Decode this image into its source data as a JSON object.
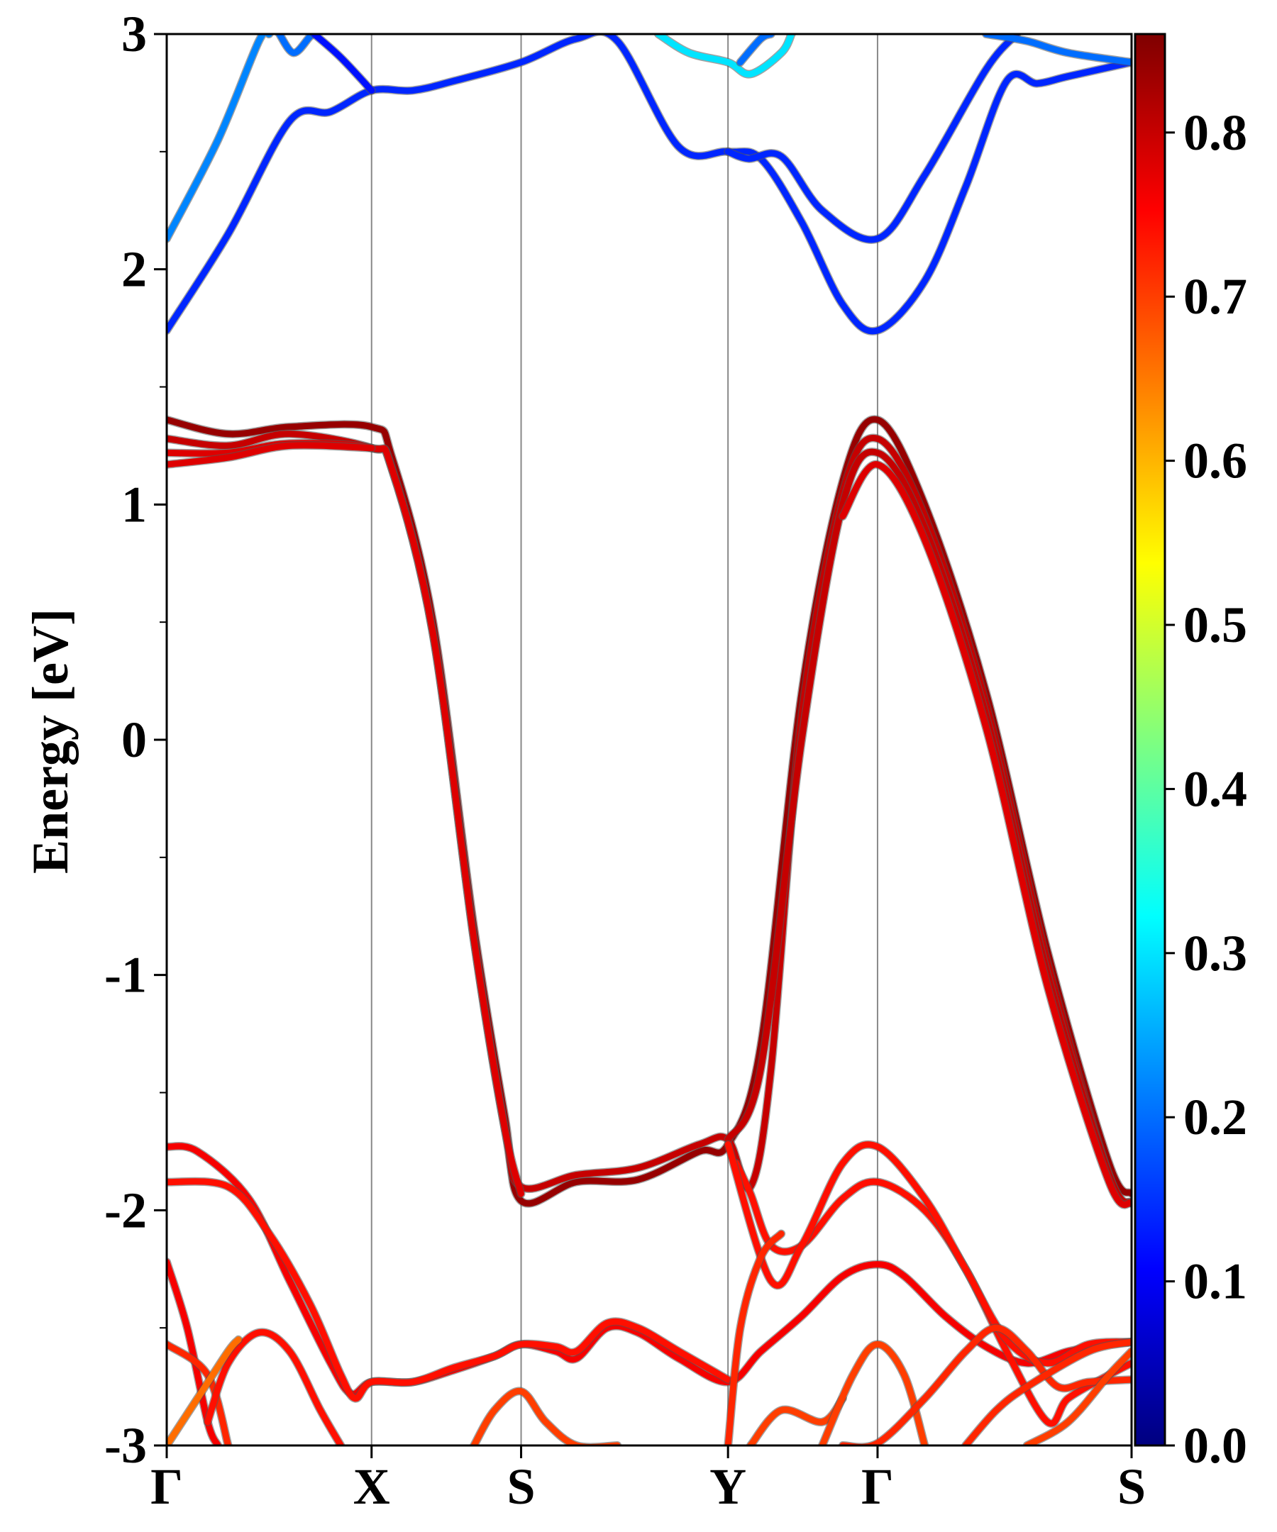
{
  "chart_data": {
    "type": "line",
    "ylabel": "Energy [eV]",
    "xlabel": "",
    "ylim": [
      -3,
      3
    ],
    "y_ticks": [
      "-3",
      "-2",
      "-1",
      "0",
      "1",
      "2",
      "3"
    ],
    "y_minor_step": 0.5,
    "x_ticks": [
      {
        "label": "Γ",
        "x": 0.0
      },
      {
        "label": "X",
        "x": 1.0
      },
      {
        "label": "S",
        "x": 1.73
      },
      {
        "label": "Y",
        "x": 2.74
      },
      {
        "label": "Γ",
        "x": 3.47
      },
      {
        "label": "S",
        "x": 4.71
      }
    ],
    "xlim": [
      0,
      4.71
    ],
    "high_symmetry_lines": true,
    "colorbar": {
      "range": [
        0.0,
        0.86
      ],
      "ticks": [
        "0.0",
        "0.1",
        "0.2",
        "0.3",
        "0.4",
        "0.5",
        "0.6",
        "0.7",
        "0.8"
      ],
      "colormap": "jet",
      "stops": [
        "#00007f",
        "#0000ff",
        "#007fff",
        "#00ffff",
        "#7fff7f",
        "#ffff00",
        "#ff7f00",
        "#ff0000",
        "#7f0000"
      ]
    },
    "series": [
      {
        "w": 0.22,
        "points": [
          [
            0,
            2.13
          ],
          [
            0.25,
            2.55
          ],
          [
            0.45,
            2.97
          ],
          [
            0.5,
            3.0
          ]
        ]
      },
      {
        "w": 0.14,
        "points": [
          [
            0,
            1.74
          ],
          [
            0.3,
            2.15
          ],
          [
            0.6,
            2.63
          ],
          [
            0.8,
            2.67
          ],
          [
            1.0,
            2.76
          ],
          [
            1.2,
            2.76
          ],
          [
            1.4,
            2.8
          ],
          [
            1.73,
            2.88
          ],
          [
            2.0,
            2.98
          ],
          [
            2.2,
            2.97
          ],
          [
            2.5,
            2.52
          ],
          [
            2.74,
            2.5
          ],
          [
            2.9,
            2.47
          ],
          [
            3.1,
            2.2
          ],
          [
            3.3,
            1.85
          ],
          [
            3.47,
            1.74
          ],
          [
            3.7,
            1.95
          ],
          [
            3.9,
            2.35
          ],
          [
            4.1,
            2.8
          ],
          [
            4.25,
            2.79
          ],
          [
            4.4,
            2.82
          ],
          [
            4.71,
            2.88
          ]
        ]
      },
      {
        "w": 0.2,
        "points": [
          [
            0.55,
            3.0
          ],
          [
            0.62,
            2.92
          ],
          [
            0.7,
            2.99
          ],
          [
            0.72,
            3.0
          ]
        ]
      },
      {
        "w": 0.12,
        "points": [
          [
            0.72,
            3.0
          ],
          [
            0.85,
            2.9
          ],
          [
            1.0,
            2.76
          ]
        ]
      },
      {
        "w": 0.3,
        "points": [
          [
            2.4,
            3.0
          ],
          [
            2.55,
            2.92
          ],
          [
            2.74,
            2.88
          ],
          [
            2.85,
            2.83
          ],
          [
            3.0,
            2.92
          ],
          [
            3.05,
            3.0
          ]
        ]
      },
      {
        "w": 0.2,
        "points": [
          [
            2.8,
            2.88
          ],
          [
            2.9,
            2.98
          ],
          [
            2.95,
            3.0
          ]
        ]
      },
      {
        "w": 0.14,
        "points": [
          [
            2.74,
            2.5
          ],
          [
            2.84,
            2.47
          ],
          [
            3.0,
            2.48
          ],
          [
            3.2,
            2.25
          ],
          [
            3.47,
            2.13
          ],
          [
            3.7,
            2.4
          ],
          [
            4.0,
            2.85
          ],
          [
            4.15,
            3.0
          ]
        ]
      },
      {
        "w": 0.2,
        "points": [
          [
            4.0,
            3.0
          ],
          [
            4.2,
            2.97
          ],
          [
            4.4,
            2.92
          ],
          [
            4.71,
            2.88
          ]
        ]
      },
      {
        "w": 0.84,
        "points": [
          [
            0,
            1.36
          ],
          [
            0.3,
            1.3
          ],
          [
            0.6,
            1.33
          ],
          [
            1.0,
            1.33
          ],
          [
            1.1,
            1.2
          ],
          [
            1.3,
            0.5
          ],
          [
            1.5,
            -0.8
          ],
          [
            1.65,
            -1.6
          ],
          [
            1.73,
            -1.96
          ],
          [
            2.0,
            -1.88
          ],
          [
            2.3,
            -1.87
          ],
          [
            2.6,
            -1.75
          ],
          [
            2.74,
            -1.72
          ],
          [
            2.9,
            -1.3
          ],
          [
            3.1,
            0.2
          ],
          [
            3.3,
            1.1
          ],
          [
            3.47,
            1.36
          ],
          [
            3.7,
            1.0
          ],
          [
            4.0,
            0.2
          ],
          [
            4.3,
            -0.9
          ],
          [
            4.6,
            -1.8
          ],
          [
            4.71,
            -1.93
          ]
        ]
      },
      {
        "w": 0.8,
        "points": [
          [
            0,
            1.28
          ],
          [
            0.3,
            1.25
          ],
          [
            0.6,
            1.3
          ],
          [
            1.0,
            1.24
          ],
          [
            1.1,
            1.15
          ],
          [
            1.3,
            0.45
          ],
          [
            1.5,
            -0.85
          ],
          [
            1.65,
            -1.65
          ],
          [
            1.73,
            -1.9
          ],
          [
            2.0,
            -1.85
          ],
          [
            2.3,
            -1.82
          ],
          [
            2.6,
            -1.72
          ],
          [
            2.74,
            -1.7
          ],
          [
            2.85,
            -1.9
          ],
          [
            2.95,
            -1.4
          ],
          [
            3.1,
            0.1
          ],
          [
            3.3,
            1.05
          ],
          [
            3.47,
            1.28
          ],
          [
            3.7,
            0.95
          ],
          [
            4.0,
            0.15
          ],
          [
            4.3,
            -0.95
          ],
          [
            4.6,
            -1.85
          ],
          [
            4.71,
            -1.97
          ]
        ]
      },
      {
        "w": 0.78,
        "points": [
          [
            0,
            1.22
          ],
          [
            0.3,
            1.22
          ],
          [
            0.6,
            1.26
          ],
          [
            1.0,
            1.24
          ],
          [
            1.1,
            1.15
          ],
          [
            1.3,
            0.45
          ],
          [
            1.5,
            -0.85
          ],
          [
            1.65,
            -1.65
          ],
          [
            1.73,
            -1.93
          ]
        ]
      },
      {
        "w": 0.78,
        "points": [
          [
            0,
            1.17
          ],
          [
            0.3,
            1.2
          ],
          [
            0.6,
            1.25
          ],
          [
            1.0,
            1.24
          ]
        ]
      },
      {
        "w": 0.8,
        "points": [
          [
            2.74,
            -1.7
          ],
          [
            2.9,
            -1.4
          ],
          [
            3.1,
            0.0
          ],
          [
            3.3,
            1.0
          ],
          [
            3.47,
            1.22
          ],
          [
            3.7,
            0.9
          ],
          [
            4.0,
            0.1
          ],
          [
            4.3,
            -1.0
          ],
          [
            4.6,
            -1.85
          ],
          [
            4.71,
            -1.97
          ]
        ]
      },
      {
        "w": 0.78,
        "points": [
          [
            3.3,
            0.95
          ],
          [
            3.47,
            1.17
          ],
          [
            3.7,
            0.85
          ],
          [
            4.0,
            0.05
          ],
          [
            4.3,
            -1.05
          ],
          [
            4.6,
            -1.88
          ],
          [
            4.71,
            -1.97
          ]
        ]
      },
      {
        "w": 0.76,
        "points": [
          [
            0,
            -1.73
          ],
          [
            0.15,
            -1.75
          ],
          [
            0.4,
            -1.95
          ],
          [
            0.6,
            -2.3
          ],
          [
            0.8,
            -2.65
          ],
          [
            0.9,
            -2.78
          ],
          [
            1.0,
            -2.73
          ],
          [
            1.2,
            -2.73
          ],
          [
            1.4,
            -2.68
          ],
          [
            1.6,
            -2.62
          ],
          [
            1.73,
            -2.57
          ],
          [
            1.9,
            -2.6
          ],
          [
            2.0,
            -2.63
          ],
          [
            2.15,
            -2.5
          ],
          [
            2.3,
            -2.52
          ],
          [
            2.5,
            -2.63
          ],
          [
            2.74,
            -2.73
          ],
          [
            2.9,
            -2.6
          ],
          [
            3.1,
            -2.45
          ],
          [
            3.3,
            -2.28
          ],
          [
            3.47,
            -2.23
          ],
          [
            3.6,
            -2.28
          ],
          [
            3.8,
            -2.45
          ],
          [
            4.0,
            -2.58
          ],
          [
            4.2,
            -2.65
          ],
          [
            4.4,
            -2.6
          ],
          [
            4.6,
            -2.57
          ],
          [
            4.71,
            -2.56
          ]
        ]
      },
      {
        "w": 0.74,
        "points": [
          [
            0,
            -1.88
          ],
          [
            0.3,
            -1.9
          ],
          [
            0.5,
            -2.1
          ],
          [
            0.7,
            -2.4
          ],
          [
            0.85,
            -2.7
          ],
          [
            0.92,
            -2.8
          ],
          [
            1.0,
            -2.73
          ],
          [
            1.2,
            -2.73
          ],
          [
            1.4,
            -2.67
          ],
          [
            1.6,
            -2.62
          ],
          [
            1.73,
            -2.57
          ],
          [
            1.9,
            -2.58
          ],
          [
            2.0,
            -2.6
          ],
          [
            2.15,
            -2.48
          ],
          [
            2.3,
            -2.5
          ],
          [
            2.5,
            -2.6
          ],
          [
            2.74,
            -2.72
          ]
        ]
      },
      {
        "w": 0.74,
        "points": [
          [
            2.78,
            -1.8
          ],
          [
            2.85,
            -1.93
          ],
          [
            2.95,
            -2.15
          ],
          [
            3.1,
            -2.15
          ],
          [
            3.3,
            -1.95
          ],
          [
            3.47,
            -1.88
          ],
          [
            3.7,
            -2.0
          ],
          [
            3.9,
            -2.25
          ],
          [
            4.1,
            -2.6
          ],
          [
            4.3,
            -2.9
          ],
          [
            4.4,
            -2.8
          ],
          [
            4.6,
            -2.7
          ],
          [
            4.71,
            -2.65
          ]
        ]
      },
      {
        "w": 0.74,
        "points": [
          [
            2.74,
            -1.72
          ],
          [
            2.95,
            -2.3
          ],
          [
            3.1,
            -2.15
          ],
          [
            3.3,
            -1.8
          ],
          [
            3.47,
            -1.73
          ],
          [
            3.7,
            -1.95
          ],
          [
            3.9,
            -2.25
          ],
          [
            4.1,
            -2.55
          ],
          [
            4.3,
            -2.65
          ],
          [
            4.5,
            -2.57
          ],
          [
            4.71,
            -2.56
          ]
        ]
      },
      {
        "w": 0.76,
        "points": [
          [
            0,
            -2.22
          ],
          [
            0.1,
            -2.5
          ],
          [
            0.2,
            -2.9
          ],
          [
            0.25,
            -3.0
          ]
        ]
      },
      {
        "w": 0.72,
        "points": [
          [
            0,
            -2.57
          ],
          [
            0.2,
            -2.7
          ],
          [
            0.3,
            -3.0
          ]
        ]
      },
      {
        "w": 0.74,
        "points": [
          [
            0.2,
            -2.9
          ],
          [
            0.3,
            -2.65
          ],
          [
            0.45,
            -2.52
          ],
          [
            0.6,
            -2.6
          ],
          [
            0.75,
            -2.85
          ],
          [
            0.85,
            -3.0
          ]
        ]
      },
      {
        "w": 0.66,
        "points": [
          [
            0,
            -3.0
          ],
          [
            0.15,
            -2.8
          ],
          [
            0.3,
            -2.6
          ],
          [
            0.35,
            -2.55
          ]
        ]
      },
      {
        "w": 0.7,
        "points": [
          [
            1.5,
            -3.0
          ],
          [
            1.6,
            -2.85
          ],
          [
            1.73,
            -2.77
          ],
          [
            1.85,
            -2.9
          ],
          [
            2.0,
            -3.0
          ],
          [
            2.2,
            -3.0
          ]
        ]
      },
      {
        "w": 0.72,
        "points": [
          [
            2.74,
            -3.0
          ],
          [
            2.8,
            -2.5
          ],
          [
            2.9,
            -2.2
          ],
          [
            3.0,
            -2.1
          ]
        ]
      },
      {
        "w": 0.7,
        "points": [
          [
            2.85,
            -3.0
          ],
          [
            3.0,
            -2.85
          ],
          [
            3.2,
            -2.9
          ],
          [
            3.3,
            -2.8
          ]
        ]
      },
      {
        "w": 0.7,
        "points": [
          [
            3.2,
            -3.0
          ],
          [
            3.35,
            -2.7
          ],
          [
            3.47,
            -2.57
          ],
          [
            3.6,
            -2.7
          ],
          [
            3.7,
            -3.0
          ]
        ]
      },
      {
        "w": 0.72,
        "points": [
          [
            3.3,
            -3.0
          ],
          [
            3.47,
            -2.99
          ],
          [
            3.7,
            -2.8
          ],
          [
            3.9,
            -2.6
          ],
          [
            4.05,
            -2.5
          ],
          [
            4.2,
            -2.6
          ],
          [
            4.35,
            -2.75
          ],
          [
            4.5,
            -2.73
          ],
          [
            4.71,
            -2.72
          ]
        ]
      },
      {
        "w": 0.72,
        "points": [
          [
            3.9,
            -3.0
          ],
          [
            4.05,
            -2.85
          ],
          [
            4.2,
            -2.75
          ],
          [
            4.5,
            -2.6
          ],
          [
            4.71,
            -2.56
          ]
        ]
      },
      {
        "w": 0.7,
        "points": [
          [
            4.2,
            -3.0
          ],
          [
            4.4,
            -2.9
          ],
          [
            4.6,
            -2.7
          ],
          [
            4.71,
            -2.6
          ]
        ]
      }
    ]
  }
}
